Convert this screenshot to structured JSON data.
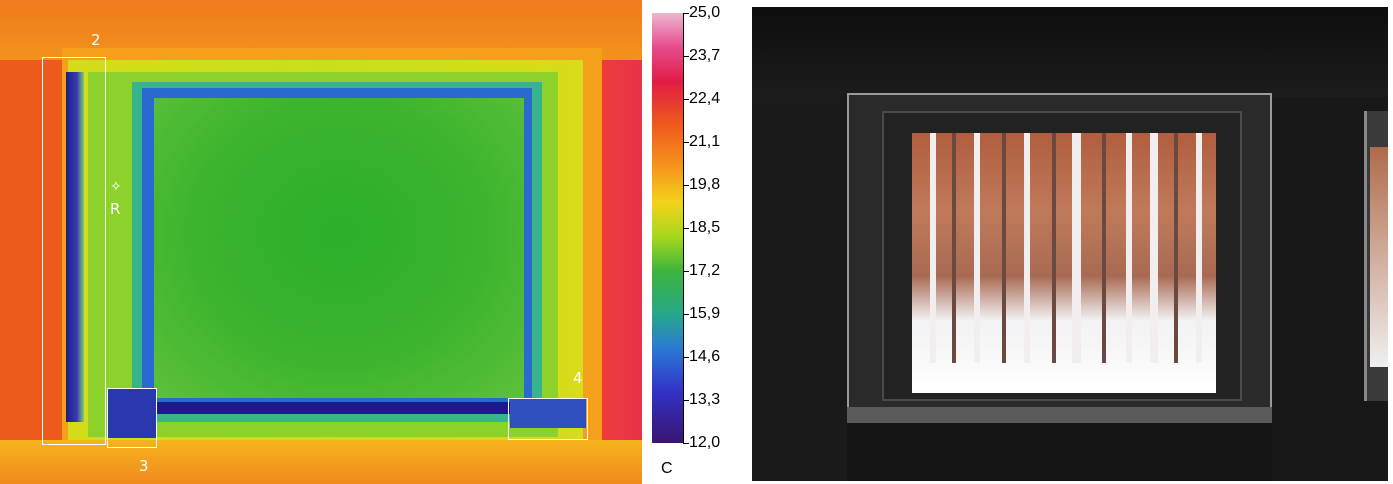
{
  "thermal_image": {
    "roi_labels": {
      "roi_2": "2",
      "roi_3": "3",
      "roi_4": "4",
      "reference_point": "R"
    }
  },
  "color_scale": {
    "unit": "C",
    "min": 12.0,
    "max": 25.0,
    "ticks": [
      "25,0",
      "23,7",
      "22,4",
      "21,1",
      "19,8",
      "18,5",
      "17,2",
      "15,9",
      "14,6",
      "13,3",
      "12,0"
    ]
  },
  "photo": {
    "subject": "window-view-snowy-forest"
  },
  "colors": {
    "background": "#ffffff",
    "roi_outline": "#ffffff",
    "scale_text": "#000000"
  }
}
